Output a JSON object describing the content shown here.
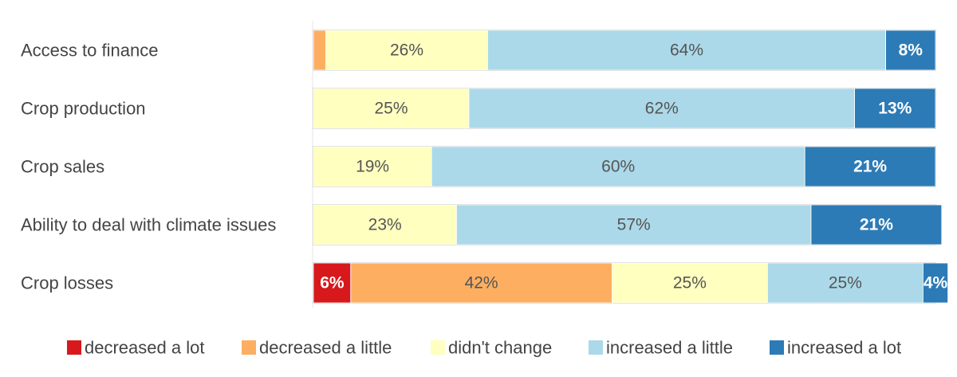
{
  "chart_data": {
    "type": "bar",
    "orientation": "horizontal",
    "stacked": true,
    "percent_stacked": true,
    "title": "",
    "xlabel": "",
    "ylabel": "",
    "xlim": [
      0,
      100
    ],
    "grid": false,
    "legend_position": "bottom",
    "categories": [
      "Access to finance",
      "Crop production",
      "Crop sales",
      "Ability to deal with climate issues",
      "Crop losses"
    ],
    "series": [
      {
        "name": "decreased a lot",
        "color": "#d7191c",
        "label_color": "#ffffff",
        "label_bold": true,
        "values": [
          0,
          0,
          0,
          0,
          6
        ],
        "labels": [
          "",
          "",
          "",
          "",
          "6%"
        ]
      },
      {
        "name": "decreased a little",
        "color": "#fdae61",
        "label_color": "#555555",
        "label_bold": false,
        "values": [
          2,
          0,
          0,
          0,
          42
        ],
        "labels": [
          "",
          "",
          "",
          "",
          "42%"
        ]
      },
      {
        "name": "didn't change",
        "color": "#ffffbf",
        "label_color": "#555555",
        "label_bold": false,
        "values": [
          26,
          25,
          19,
          23,
          25
        ],
        "labels": [
          "26%",
          "25%",
          "19%",
          "23%",
          "25%"
        ]
      },
      {
        "name": "increased a little",
        "color": "#abd9e9",
        "label_color": "#555555",
        "label_bold": false,
        "values": [
          64,
          62,
          60,
          57,
          25
        ],
        "labels": [
          "64%",
          "62%",
          "60%",
          "57%",
          "25%"
        ]
      },
      {
        "name": "increased a lot",
        "color": "#2c7bb6",
        "label_color": "#ffffff",
        "label_bold": true,
        "values": [
          8,
          13,
          21,
          21,
          4
        ],
        "labels": [
          "8%",
          "13%",
          "21%",
          "21%",
          "4%"
        ]
      }
    ]
  }
}
